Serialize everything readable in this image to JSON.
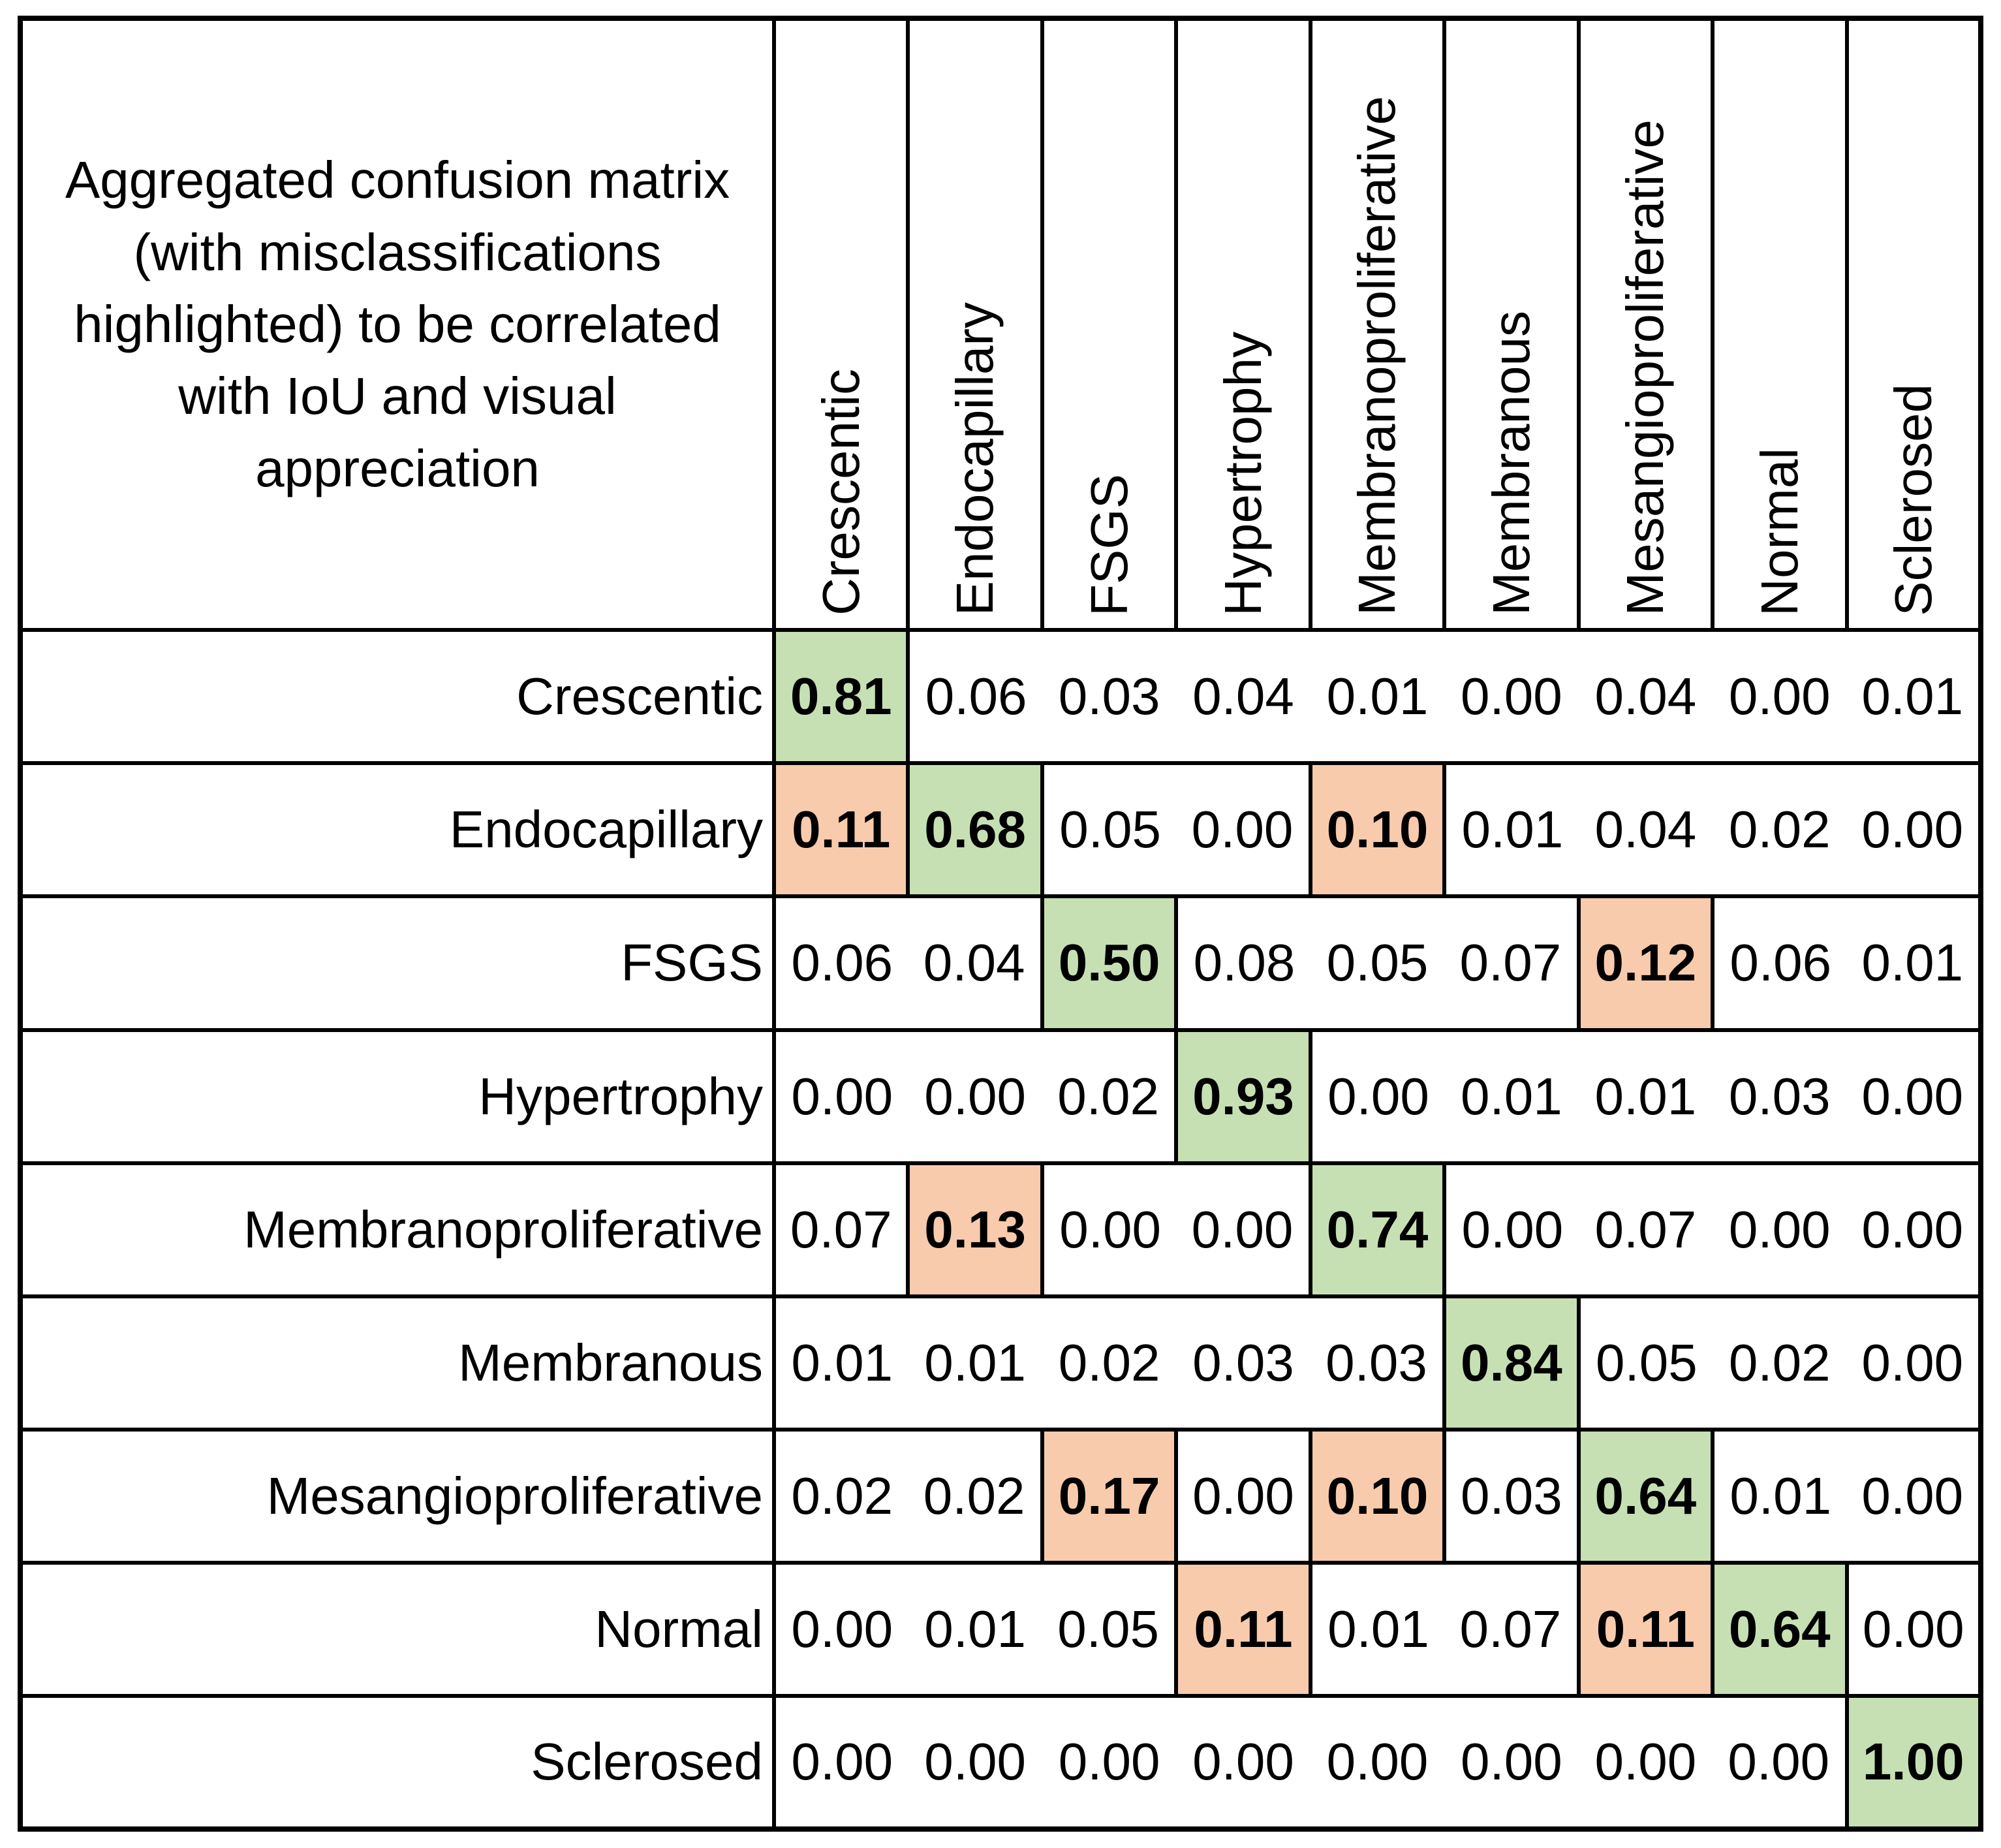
{
  "title": "Aggregated confusion matrix\n(with misclassifications\nhighlighted) to be correlated\nwith IoU and visual\nappreciation",
  "colors": {
    "green": "#c6e0b4",
    "orange": "#f8cbad",
    "border": "#000000",
    "background": "#ffffff",
    "text": "#000000"
  },
  "col_headers": [
    "Crescentic",
    "Endocapillary",
    "FSGS",
    "Hypertrophy",
    "Membranoproliferative",
    "Membranous",
    "Mesangioproliferative",
    "Normal",
    "Sclerosed"
  ],
  "rows": [
    {
      "label": "Crescentic",
      "values": [
        "0.81",
        "0.06",
        "0.03",
        "0.04",
        "0.01",
        "0.00",
        "0.04",
        "0.00",
        "0.01"
      ],
      "green": [
        0
      ],
      "orange": []
    },
    {
      "label": "Endocapillary",
      "values": [
        "0.11",
        "0.68",
        "0.05",
        "0.00",
        "0.10",
        "0.01",
        "0.04",
        "0.02",
        "0.00"
      ],
      "green": [
        1
      ],
      "orange": [
        0,
        4
      ]
    },
    {
      "label": "FSGS",
      "values": [
        "0.06",
        "0.04",
        "0.50",
        "0.08",
        "0.05",
        "0.07",
        "0.12",
        "0.06",
        "0.01"
      ],
      "green": [
        2
      ],
      "orange": [
        6
      ]
    },
    {
      "label": "Hypertrophy",
      "values": [
        "0.00",
        "0.00",
        "0.02",
        "0.93",
        "0.00",
        "0.01",
        "0.01",
        "0.03",
        "0.00"
      ],
      "green": [
        3
      ],
      "orange": []
    },
    {
      "label": "Membranoproliferative",
      "values": [
        "0.07",
        "0.13",
        "0.00",
        "0.00",
        "0.74",
        "0.00",
        "0.07",
        "0.00",
        "0.00"
      ],
      "green": [
        4
      ],
      "orange": [
        1
      ]
    },
    {
      "label": "Membranous",
      "values": [
        "0.01",
        "0.01",
        "0.02",
        "0.03",
        "0.03",
        "0.84",
        "0.05",
        "0.02",
        "0.00"
      ],
      "green": [
        5
      ],
      "orange": []
    },
    {
      "label": "Mesangioproliferative",
      "values": [
        "0.02",
        "0.02",
        "0.17",
        "0.00",
        "0.10",
        "0.03",
        "0.64",
        "0.01",
        "0.00"
      ],
      "green": [
        6
      ],
      "orange": [
        2,
        4
      ]
    },
    {
      "label": "Normal",
      "values": [
        "0.00",
        "0.01",
        "0.05",
        "0.11",
        "0.01",
        "0.07",
        "0.11",
        "0.64",
        "0.00"
      ],
      "green": [
        7
      ],
      "orange": [
        3,
        6
      ]
    },
    {
      "label": "Sclerosed",
      "values": [
        "0.00",
        "0.00",
        "0.00",
        "0.00",
        "0.00",
        "0.00",
        "0.00",
        "0.00",
        "1.00"
      ],
      "green": [
        8
      ],
      "orange": []
    }
  ],
  "chart_data": {
    "type": "heatmap",
    "title": "Aggregated confusion matrix (with misclassifications highlighted) to be correlated with IoU and visual appreciation",
    "row_labels": [
      "Crescentic",
      "Endocapillary",
      "FSGS",
      "Hypertrophy",
      "Membranoproliferative",
      "Membranous",
      "Mesangioproliferative",
      "Normal",
      "Sclerosed"
    ],
    "col_labels": [
      "Crescentic",
      "Endocapillary",
      "FSGS",
      "Hypertrophy",
      "Membranoproliferative",
      "Membranous",
      "Mesangioproliferative",
      "Normal",
      "Sclerosed"
    ],
    "values": [
      [
        0.81,
        0.06,
        0.03,
        0.04,
        0.01,
        0.0,
        0.04,
        0.0,
        0.01
      ],
      [
        0.11,
        0.68,
        0.05,
        0.0,
        0.1,
        0.01,
        0.04,
        0.02,
        0.0
      ],
      [
        0.06,
        0.04,
        0.5,
        0.08,
        0.05,
        0.07,
        0.12,
        0.06,
        0.01
      ],
      [
        0.0,
        0.0,
        0.02,
        0.93,
        0.0,
        0.01,
        0.01,
        0.03,
        0.0
      ],
      [
        0.07,
        0.13,
        0.0,
        0.0,
        0.74,
        0.0,
        0.07,
        0.0,
        0.0
      ],
      [
        0.01,
        0.01,
        0.02,
        0.03,
        0.03,
        0.84,
        0.05,
        0.02,
        0.0
      ],
      [
        0.02,
        0.02,
        0.17,
        0.0,
        0.1,
        0.03,
        0.64,
        0.01,
        0.0
      ],
      [
        0.0,
        0.01,
        0.05,
        0.11,
        0.01,
        0.07,
        0.11,
        0.64,
        0.0
      ],
      [
        0.0,
        0.0,
        0.0,
        0.0,
        0.0,
        0.0,
        0.0,
        0.0,
        1.0
      ]
    ],
    "highlight_green_diagonal": [
      [
        0,
        0
      ],
      [
        1,
        1
      ],
      [
        2,
        2
      ],
      [
        3,
        3
      ],
      [
        4,
        4
      ],
      [
        5,
        5
      ],
      [
        6,
        6
      ],
      [
        7,
        7
      ],
      [
        8,
        8
      ]
    ],
    "highlight_orange_misclassifications": [
      [
        1,
        0
      ],
      [
        1,
        4
      ],
      [
        2,
        6
      ],
      [
        4,
        1
      ],
      [
        6,
        2
      ],
      [
        6,
        4
      ],
      [
        7,
        3
      ],
      [
        7,
        6
      ]
    ],
    "legend_position": "none",
    "grid": "row-separators-and-highlight-borders"
  }
}
